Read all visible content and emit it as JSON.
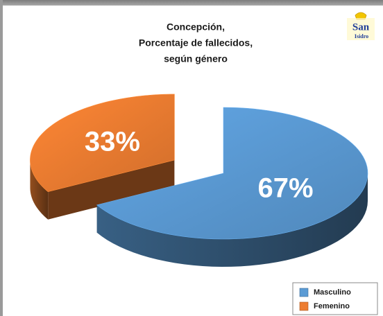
{
  "chart_data": {
    "type": "pie3d",
    "title": [
      "Concepción,",
      "Porcentaje de fallecidos,",
      "según género"
    ],
    "logo": [
      "San",
      "Isidro"
    ],
    "categories": [
      "Masculino",
      "Femenino"
    ],
    "values": [
      67,
      33
    ],
    "value_labels": [
      "67%",
      "33%"
    ],
    "colors": [
      "#5b9bd5",
      "#ed7d31"
    ],
    "exploded": [
      false,
      true
    ],
    "legend": "bottom-right"
  }
}
